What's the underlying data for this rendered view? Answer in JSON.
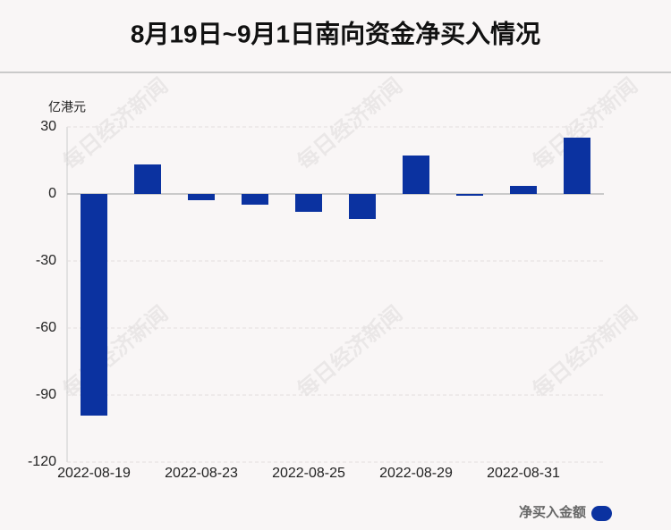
{
  "chart_data": {
    "type": "bar",
    "title": "8月19日~9月1日南向资金净买入情况",
    "y_unit": "亿港元",
    "watermark": "每日经济新闻",
    "categories": [
      "2022-08-19",
      null,
      "2022-08-23",
      null,
      "2022-08-25",
      null,
      "2022-08-29",
      null,
      "2022-08-31",
      null
    ],
    "series": [
      {
        "name": "净买入金额",
        "color": "#0b32a0",
        "values": [
          -99.2,
          13.2,
          -2.8,
          -4.8,
          -8,
          -11.2,
          17.2,
          -0.8,
          3.6,
          25.2
        ]
      }
    ],
    "ylim": [
      -120,
      30
    ],
    "yticks": [
      -120,
      -90,
      -60,
      -30,
      0,
      30
    ],
    "grid": true,
    "legend": "bottom-right"
  }
}
